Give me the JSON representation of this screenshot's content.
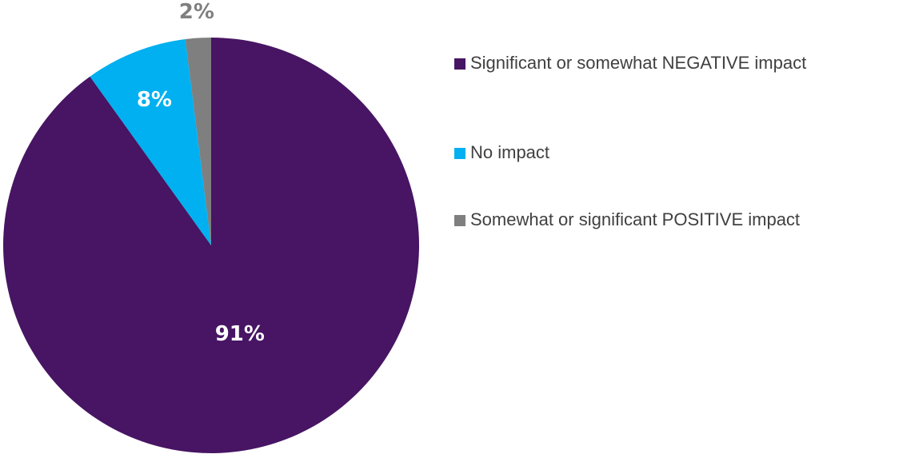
{
  "chart_data": {
    "type": "pie",
    "categories": [
      "Significant or somewhat NEGATIVE impact",
      "No impact",
      "Somewhat or significant POSITIVE impact"
    ],
    "values": [
      91,
      8,
      2
    ],
    "value_labels": [
      "91%",
      "8%",
      "2%"
    ],
    "colors": [
      "#471563",
      "#00b0f0",
      "#7f7f7f"
    ],
    "legend": "right"
  }
}
